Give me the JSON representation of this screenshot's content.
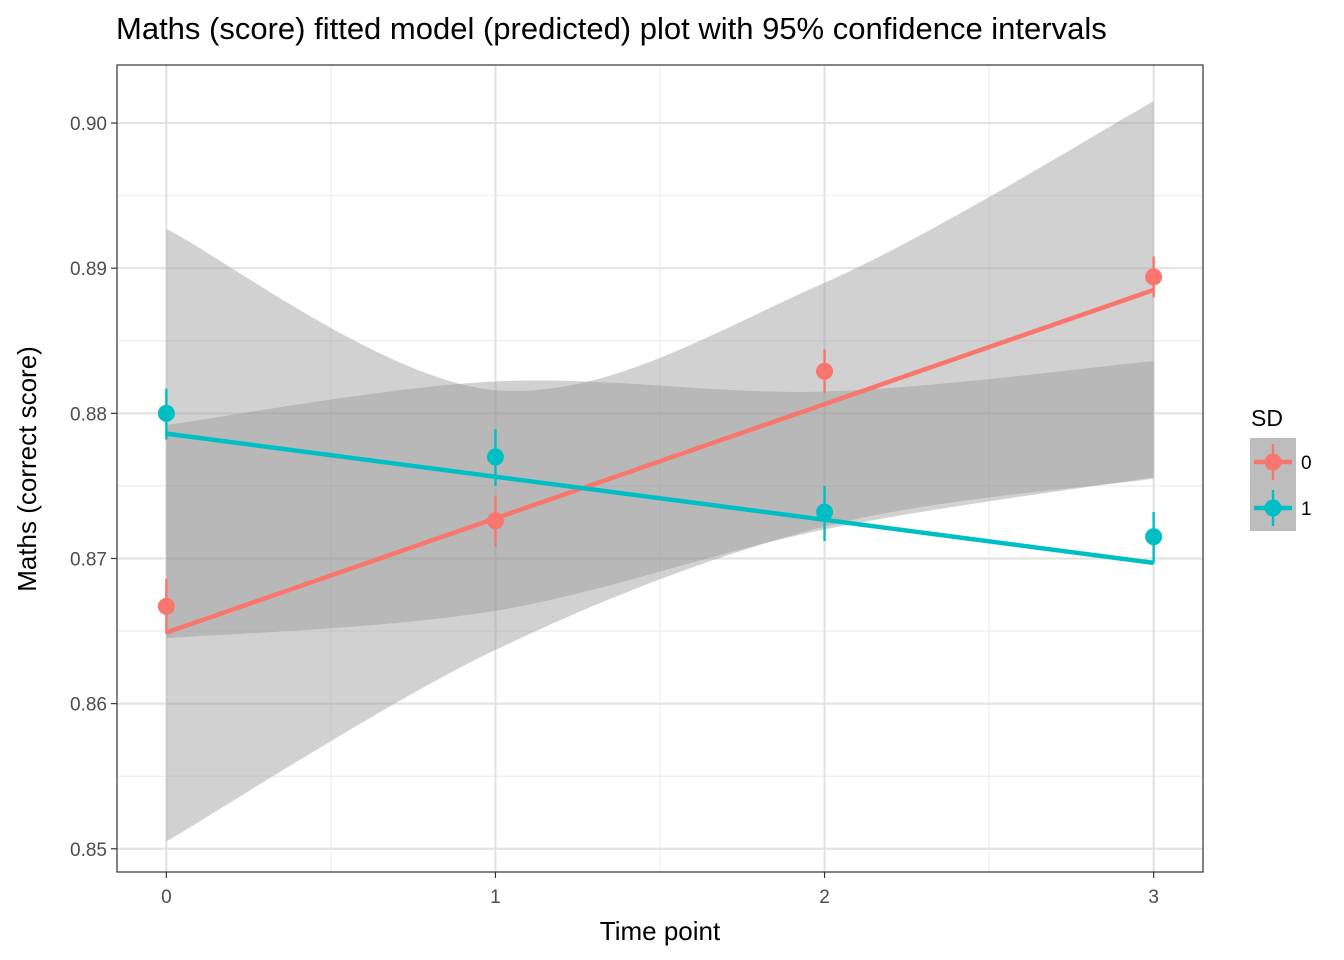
{
  "chart_data": {
    "type": "line",
    "title": "Maths (score) fitted model (predicted) plot with 95% confidence intervals",
    "xlabel": "Time point",
    "ylabel": "Maths (correct score)",
    "x": [
      0,
      1,
      2,
      3
    ],
    "x_ticks": [
      "0",
      "1",
      "2",
      "3"
    ],
    "y_ticks": [
      "0.85",
      "0.86",
      "0.87",
      "0.88",
      "0.89",
      "0.90"
    ],
    "xlim": [
      -0.15,
      3.15
    ],
    "ylim": [
      0.8484,
      0.904
    ],
    "grid": true,
    "legend": {
      "title": "SD",
      "position": "right"
    },
    "series": [
      {
        "name": "0",
        "color": "#F8766D",
        "points": [
          0.8667,
          0.8726,
          0.8829,
          0.8894
        ],
        "error_low": [
          0.8648,
          0.8708,
          0.8814,
          0.888
        ],
        "error_high": [
          0.8686,
          0.8743,
          0.8844,
          0.8908
        ],
        "fit_start": 0.8649,
        "fit_end": 0.8885,
        "ci_lower": [
          0.8505,
          0.8637,
          0.8722,
          0.8755
        ],
        "ci_upper": [
          0.8927,
          0.8816,
          0.889,
          0.9015
        ]
      },
      {
        "name": "1",
        "color": "#00BFC4",
        "points": [
          0.88,
          0.877,
          0.8732,
          0.8715
        ],
        "error_low": [
          0.8782,
          0.875,
          0.8712,
          0.8697
        ],
        "error_high": [
          0.8817,
          0.8789,
          0.875,
          0.8732
        ],
        "fit_start": 0.8786,
        "fit_end": 0.8697,
        "ci_lower": [
          0.8645,
          0.8664,
          0.872,
          0.8756
        ],
        "ci_upper": [
          0.8792,
          0.8822,
          0.8815,
          0.8836
        ]
      }
    ]
  }
}
